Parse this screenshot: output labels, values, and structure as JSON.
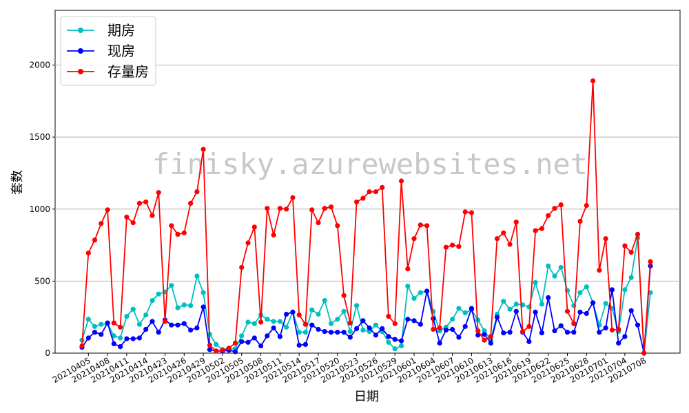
{
  "watermark": "finisky.azurewebsites.net",
  "chart_data": {
    "type": "line",
    "xlabel": "日期",
    "ylabel": "套数",
    "ylim": [
      0,
      2380
    ],
    "yticks": [
      0,
      500,
      1000,
      1500,
      2000
    ],
    "grid": "horizontal",
    "legend_position": "top-left",
    "xtick_labels": [
      "20210405",
      "20210408",
      "20210411",
      "20210414",
      "20210423",
      "20210426",
      "20210429",
      "20210502",
      "20210505",
      "20210508",
      "20210511",
      "20210514",
      "20210517",
      "20210520",
      "20210523",
      "20210526",
      "20210529",
      "20210601",
      "20210604",
      "20210607",
      "20210610",
      "20210613",
      "20210616",
      "20210619",
      "20210622",
      "20210625",
      "20210628",
      "20210701",
      "20210704",
      "20210708"
    ],
    "xtick_positions": [
      1,
      4,
      7,
      10,
      13,
      16,
      19,
      22,
      25,
      28,
      31,
      34,
      37,
      40,
      43,
      46,
      49,
      52,
      55,
      58,
      61,
      64,
      67,
      70,
      73,
      76,
      79,
      82,
      85,
      88
    ],
    "series": [
      {
        "name": "期房",
        "color": "#00bfbf",
        "values": [
          90,
          235,
          185,
          200,
          205,
          120,
          105,
          255,
          305,
          200,
          265,
          365,
          410,
          425,
          470,
          315,
          335,
          330,
          535,
          420,
          130,
          60,
          25,
          30,
          30,
          120,
          215,
          205,
          265,
          235,
          220,
          220,
          180,
          285,
          145,
          145,
          300,
          270,
          365,
          205,
          235,
          290,
          150,
          330,
          160,
          150,
          195,
          150,
          75,
          30,
          50,
          465,
          380,
          420,
          430,
          290,
          155,
          180,
          235,
          310,
          280,
          300,
          230,
          155,
          90,
          270,
          360,
          305,
          340,
          335,
          320,
          490,
          340,
          605,
          535,
          595,
          435,
          330,
          420,
          460,
          350,
          195,
          345,
          310,
          150,
          440,
          525,
          800,
          0,
          420
        ]
      },
      {
        "name": "现房",
        "color": "#0000ff",
        "values": [
          40,
          105,
          145,
          130,
          210,
          65,
          45,
          100,
          100,
          105,
          165,
          220,
          145,
          230,
          195,
          195,
          205,
          160,
          175,
          320,
          25,
          15,
          15,
          20,
          10,
          80,
          75,
          105,
          50,
          120,
          175,
          115,
          270,
          285,
          55,
          60,
          195,
          165,
          150,
          145,
          145,
          145,
          110,
          170,
          225,
          175,
          125,
          170,
          115,
          95,
          85,
          235,
          225,
          200,
          430,
          240,
          70,
          160,
          165,
          110,
          185,
          310,
          125,
          130,
          70,
          250,
          140,
          145,
          290,
          145,
          80,
          285,
          140,
          385,
          155,
          190,
          145,
          145,
          285,
          275,
          350,
          145,
          175,
          440,
          70,
          115,
          295,
          195,
          0,
          605
        ]
      },
      {
        "name": "存量房",
        "color": "#ff0000",
        "values": [
          50,
          695,
          785,
          900,
          995,
          210,
          180,
          945,
          905,
          1040,
          1050,
          955,
          1115,
          220,
          885,
          825,
          835,
          1040,
          1120,
          1415,
          55,
          15,
          20,
          35,
          70,
          595,
          765,
          875,
          215,
          1005,
          820,
          1005,
          1000,
          1080,
          265,
          200,
          995,
          905,
          1005,
          1015,
          885,
          400,
          210,
          1050,
          1075,
          1120,
          1120,
          1150,
          255,
          205,
          1195,
          585,
          795,
          890,
          885,
          165,
          175,
          735,
          750,
          740,
          980,
          975,
          155,
          90,
          115,
          795,
          835,
          755,
          910,
          150,
          185,
          850,
          865,
          955,
          1005,
          1030,
          290,
          205,
          915,
          1025,
          1890,
          575,
          795,
          160,
          165,
          745,
          700,
          825,
          0,
          635
        ]
      }
    ]
  }
}
